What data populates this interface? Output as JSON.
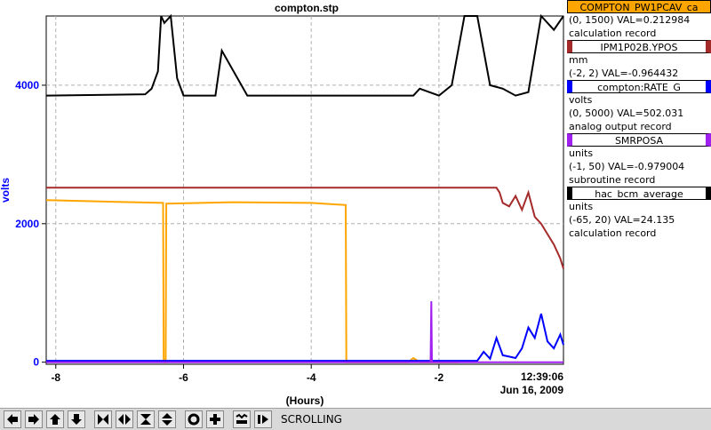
{
  "chart_data": {
    "type": "line",
    "title": "compton.stp",
    "xlabel": "(Hours)",
    "ylabel": "volts",
    "xlim": [
      -8.15,
      -0.05
    ],
    "ylim": [
      -30,
      5000
    ],
    "x_ticks": [
      -8,
      -6,
      -4,
      -2
    ],
    "x_tick_labels": [
      "-8",
      "-6",
      "-4",
      "-2"
    ],
    "y_ticks": [
      0,
      2000,
      4000
    ],
    "y_tick_labels": [
      "0",
      "2000",
      "4000"
    ],
    "time_label": "12:39:06",
    "date_label": "Jun 16, 2009",
    "grid": true,
    "series": [
      {
        "name": "COMPTON_PW1PCAV_ca",
        "color": "#ffa500",
        "x": [
          -8.15,
          -6.32,
          -6.31,
          -6.28,
          -6.27,
          -5.2,
          -4.0,
          -3.46,
          -3.45,
          -3.41,
          -2.5,
          -2.48,
          -2.4,
          -2.3,
          -1.8,
          -1.7
        ],
        "y": [
          2340,
          2300,
          0,
          0,
          2290,
          2310,
          2300,
          2270,
          0,
          0,
          0,
          0,
          60,
          0,
          0,
          0
        ]
      },
      {
        "name": "IPM1P02B.YPOS",
        "color": "#a52a2a",
        "x": [
          -8.15,
          -1.1,
          -1.05,
          -1.0,
          -0.9,
          -0.8,
          -0.7,
          -0.6,
          -0.5,
          -0.4,
          -0.3,
          -0.2,
          -0.1,
          -0.05
        ],
        "y": [
          2520,
          2520,
          2450,
          2300,
          2250,
          2400,
          2200,
          2450,
          2100,
          2000,
          1850,
          1700,
          1500,
          1350
        ]
      },
      {
        "name": "compton:RATE_G",
        "color": "#0000ff",
        "x": [
          -8.15,
          -1.4,
          -1.3,
          -1.2,
          -1.1,
          -1.0,
          -0.9,
          -0.8,
          -0.7,
          -0.6,
          -0.5,
          -0.4,
          -0.3,
          -0.2,
          -0.1,
          -0.05
        ],
        "y": [
          20,
          20,
          150,
          50,
          350,
          100,
          80,
          60,
          200,
          500,
          350,
          700,
          300,
          200,
          400,
          250
        ]
      },
      {
        "name": "SMRPOSA",
        "color": "#a020f0",
        "x": [
          -8.15,
          -2.13,
          -2.12,
          -2.11,
          -2.1,
          -0.05
        ],
        "y": [
          0,
          0,
          880,
          0,
          0,
          0
        ]
      },
      {
        "name": "hac_bcm_average",
        "color": "#000000",
        "x": [
          -8.15,
          -6.6,
          -6.5,
          -6.4,
          -6.35,
          -6.3,
          -6.2,
          -6.1,
          -6.0,
          -5.5,
          -5.4,
          -5.0,
          -2.4,
          -2.3,
          -2.0,
          -1.8,
          -1.6,
          -1.4,
          -1.2,
          -1.0,
          -0.8,
          -0.6,
          -0.4,
          -0.2,
          -0.05
        ],
        "y": [
          3850,
          3870,
          3950,
          4200,
          5000,
          4900,
          5000,
          4100,
          3850,
          3850,
          4500,
          3850,
          3850,
          3950,
          3850,
          4000,
          5000,
          5000,
          4000,
          3950,
          3850,
          3900,
          5000,
          4800,
          5000
        ]
      }
    ]
  },
  "legend": [
    {
      "title": "COMPTON_PW1PCAV_ca",
      "unit": "",
      "info": "(0, 1500) VAL=0.212984",
      "rtype": "calculation record",
      "color": "#ffa500"
    },
    {
      "title": "IPM1P02B.YPOS",
      "unit": "mm",
      "info": "(-2, 2) VAL=-0.964432",
      "rtype": "",
      "color": "#a52a2a"
    },
    {
      "title": "compton:RATE_G",
      "unit": "volts",
      "info": "(0, 5000) VAL=502.031",
      "rtype": "analog output record",
      "color": "#0000ff"
    },
    {
      "title": "SMRPOSA",
      "unit": "units",
      "info": "(-1, 50) VAL=-0.979004",
      "rtype": "subroutine record",
      "color": "#a020f0"
    },
    {
      "title": "hac_bcm_average",
      "unit": "units",
      "info": "(-65, 20) VAL=24.135",
      "rtype": "calculation record",
      "color": "#000000"
    }
  ],
  "toolbar": {
    "status": "SCROLLING",
    "buttons": [
      "arrow-left-icon",
      "arrow-right-icon",
      "arrow-up-icon",
      "arrow-down-icon",
      "zoom-in-x-icon",
      "zoom-out-x-icon",
      "zoom-in-y-icon",
      "zoom-out-y-icon",
      "reset-icon",
      "add-icon",
      "auto-scale-icon",
      "scroll-icon"
    ]
  }
}
